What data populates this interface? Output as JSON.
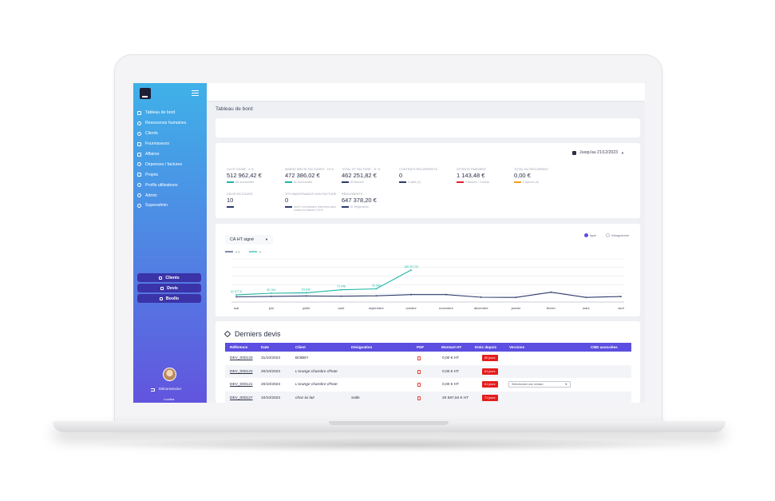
{
  "sidebar": {
    "items": [
      {
        "label": "Tableau de bord",
        "icon": "home-icon"
      },
      {
        "label": "Ressources humaines",
        "icon": "people-icon"
      },
      {
        "label": "Clients",
        "icon": "user-icon"
      },
      {
        "label": "Fournisseurs",
        "icon": "truck-icon"
      },
      {
        "label": "Affaires",
        "icon": "briefcase-icon"
      },
      {
        "label": "Dépenses / factures",
        "icon": "wallet-icon"
      },
      {
        "label": "Projets",
        "icon": "folder-icon"
      },
      {
        "label": "Profils utilisateurs",
        "icon": "profile-icon"
      },
      {
        "label": "Admin",
        "icon": "gear-icon"
      },
      {
        "label": "Superadmin",
        "icon": "shield-icon"
      }
    ],
    "quick_buttons": [
      "Clients",
      "Devis",
      "Boollo"
    ],
    "logout": "Déconnexion",
    "username": "Loudha"
  },
  "page": {
    "title": "Tableau de bord",
    "date_range": "Jusqu'au 21/12/2023"
  },
  "stats": [
    {
      "label": "CA HT signé · 5 %",
      "value": "512 962,42 €",
      "sub": "65 commandes",
      "color": "#1fb6a6"
    },
    {
      "label": "Marge Brute Factures · 15 %",
      "value": "472 386,02 €",
      "sub": "82 commandes",
      "color": "#1fb6a6"
    },
    {
      "label": "Total HT facturé · 11 %",
      "value": "462 251,82 €",
      "sub": "80 factures",
      "color": "#2d3a6b"
    },
    {
      "label": "Contrats récurrents",
      "value": "0",
      "sub": "0 actifs (0)",
      "color": "#2d3a6b"
    },
    {
      "label": "Attente paiement",
      "value": "1 143,48 €",
      "sub": "5 factures / 3 clients",
      "color": "#e0202d"
    },
    {
      "label": "Total du récurrent",
      "value": "0,00 €",
      "sub": "0 factures (0)",
      "color": "#f2a21a"
    },
    {
      "label": "Devis en cours",
      "value": "10",
      "sub": "",
      "color": "#2d3a6b"
    },
    {
      "label": "TPS maintenance non facturé",
      "value": "0",
      "sub": "dont 0 commandes réservées sans contrat de facturé 0,00 €",
      "color": "#2d3a6b"
    },
    {
      "label": "Règlements",
      "value": "647 378,20 €",
      "sub": "81 Règlements",
      "color": "#2d3a6b"
    }
  ],
  "chart_controls": {
    "select": "CA HT signé",
    "toggle_line": "ligne",
    "toggle_hist": "histogramme"
  },
  "chart_data": {
    "type": "line",
    "categories": [
      "mai",
      "juin",
      "juillet",
      "août",
      "septembre",
      "octobre",
      "novembre",
      "décembre",
      "janvier",
      "février",
      "mars",
      "avril"
    ],
    "series": [
      {
        "name": "n-1",
        "color": "#2d3a6b",
        "values": [
          30000,
          33000,
          35000,
          34000,
          36000,
          43000,
          43000,
          28000,
          27000,
          57000,
          27000,
          32000
        ]
      },
      {
        "name": "n",
        "color": "#1fb6a6",
        "values": [
          41077.6,
          50764,
          53830,
          71046,
          76280,
          185537.53,
          null,
          null,
          null,
          null,
          null,
          null
        ]
      }
    ],
    "data_labels": [
      "41 077,6",
      "50 764",
      "53 830",
      "71 046",
      "76 280",
      "185 537,53"
    ],
    "ylim": [
      0,
      250000
    ],
    "grid": true,
    "legend": "top-left"
  },
  "quotes": {
    "title": "Derniers devis",
    "headers": [
      "Référence",
      "Date",
      "Client",
      "Désignation",
      "PDF",
      "Montant HT",
      "Emis depuis",
      "Versions",
      "CMD associées"
    ],
    "rows": [
      {
        "ref": "DEV_000133",
        "date": "31/10/2023",
        "client": "BOBBY",
        "designation": "",
        "amount": "0,00 € HT",
        "since": "50 jours",
        "version": ""
      },
      {
        "ref": "DEV_000122",
        "date": "20/10/2023",
        "client": "L'orange chambre d'hote",
        "designation": "",
        "amount": "0,00 € HT",
        "since": "61 jours",
        "version": ""
      },
      {
        "ref": "DEV_000121",
        "date": "20/10/2023",
        "client": "L'orange chambre d'hote",
        "designation": "",
        "amount": "0,00 € HT",
        "since": "61 jours",
        "version": "Sélectionner une version"
      },
      {
        "ref": "DEV_000127",
        "date": "10/10/2023",
        "client": "chez lui lait",
        "designation": "Salle",
        "amount": "20 587,84 € HT",
        "since": "71 jours",
        "version": ""
      }
    ]
  }
}
